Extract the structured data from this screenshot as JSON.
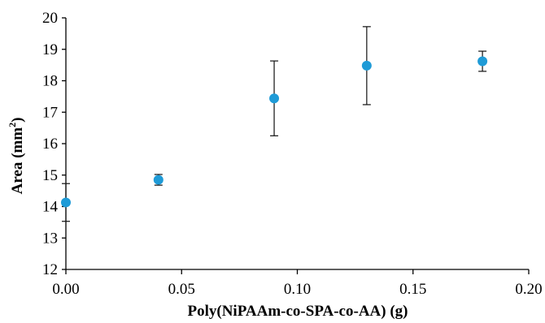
{
  "chart_data": {
    "type": "scatter",
    "title": "",
    "xlabel": "Poly(NiPAAm-co-SPA-co-AA) (g)",
    "ylabel_main": "Area (mm",
    "ylabel_sup": "2",
    "ylabel_close": ")",
    "xlim": [
      0,
      0.2
    ],
    "ylim": [
      12,
      20
    ],
    "x_ticks": [
      "0.00",
      "0.05",
      "0.10",
      "0.15",
      "0.20"
    ],
    "y_ticks": [
      "12",
      "13",
      "14",
      "15",
      "16",
      "17",
      "18",
      "19",
      "20"
    ],
    "grid": false,
    "legend": "none",
    "marker_color": "#1f9bd7",
    "points": [
      {
        "x": 0.0,
        "y": 14.13,
        "err": 0.6
      },
      {
        "x": 0.04,
        "y": 14.85,
        "err": 0.17
      },
      {
        "x": 0.09,
        "y": 17.44,
        "err": 1.19
      },
      {
        "x": 0.13,
        "y": 18.48,
        "err": 1.24
      },
      {
        "x": 0.18,
        "y": 18.62,
        "err": 0.32
      }
    ]
  }
}
